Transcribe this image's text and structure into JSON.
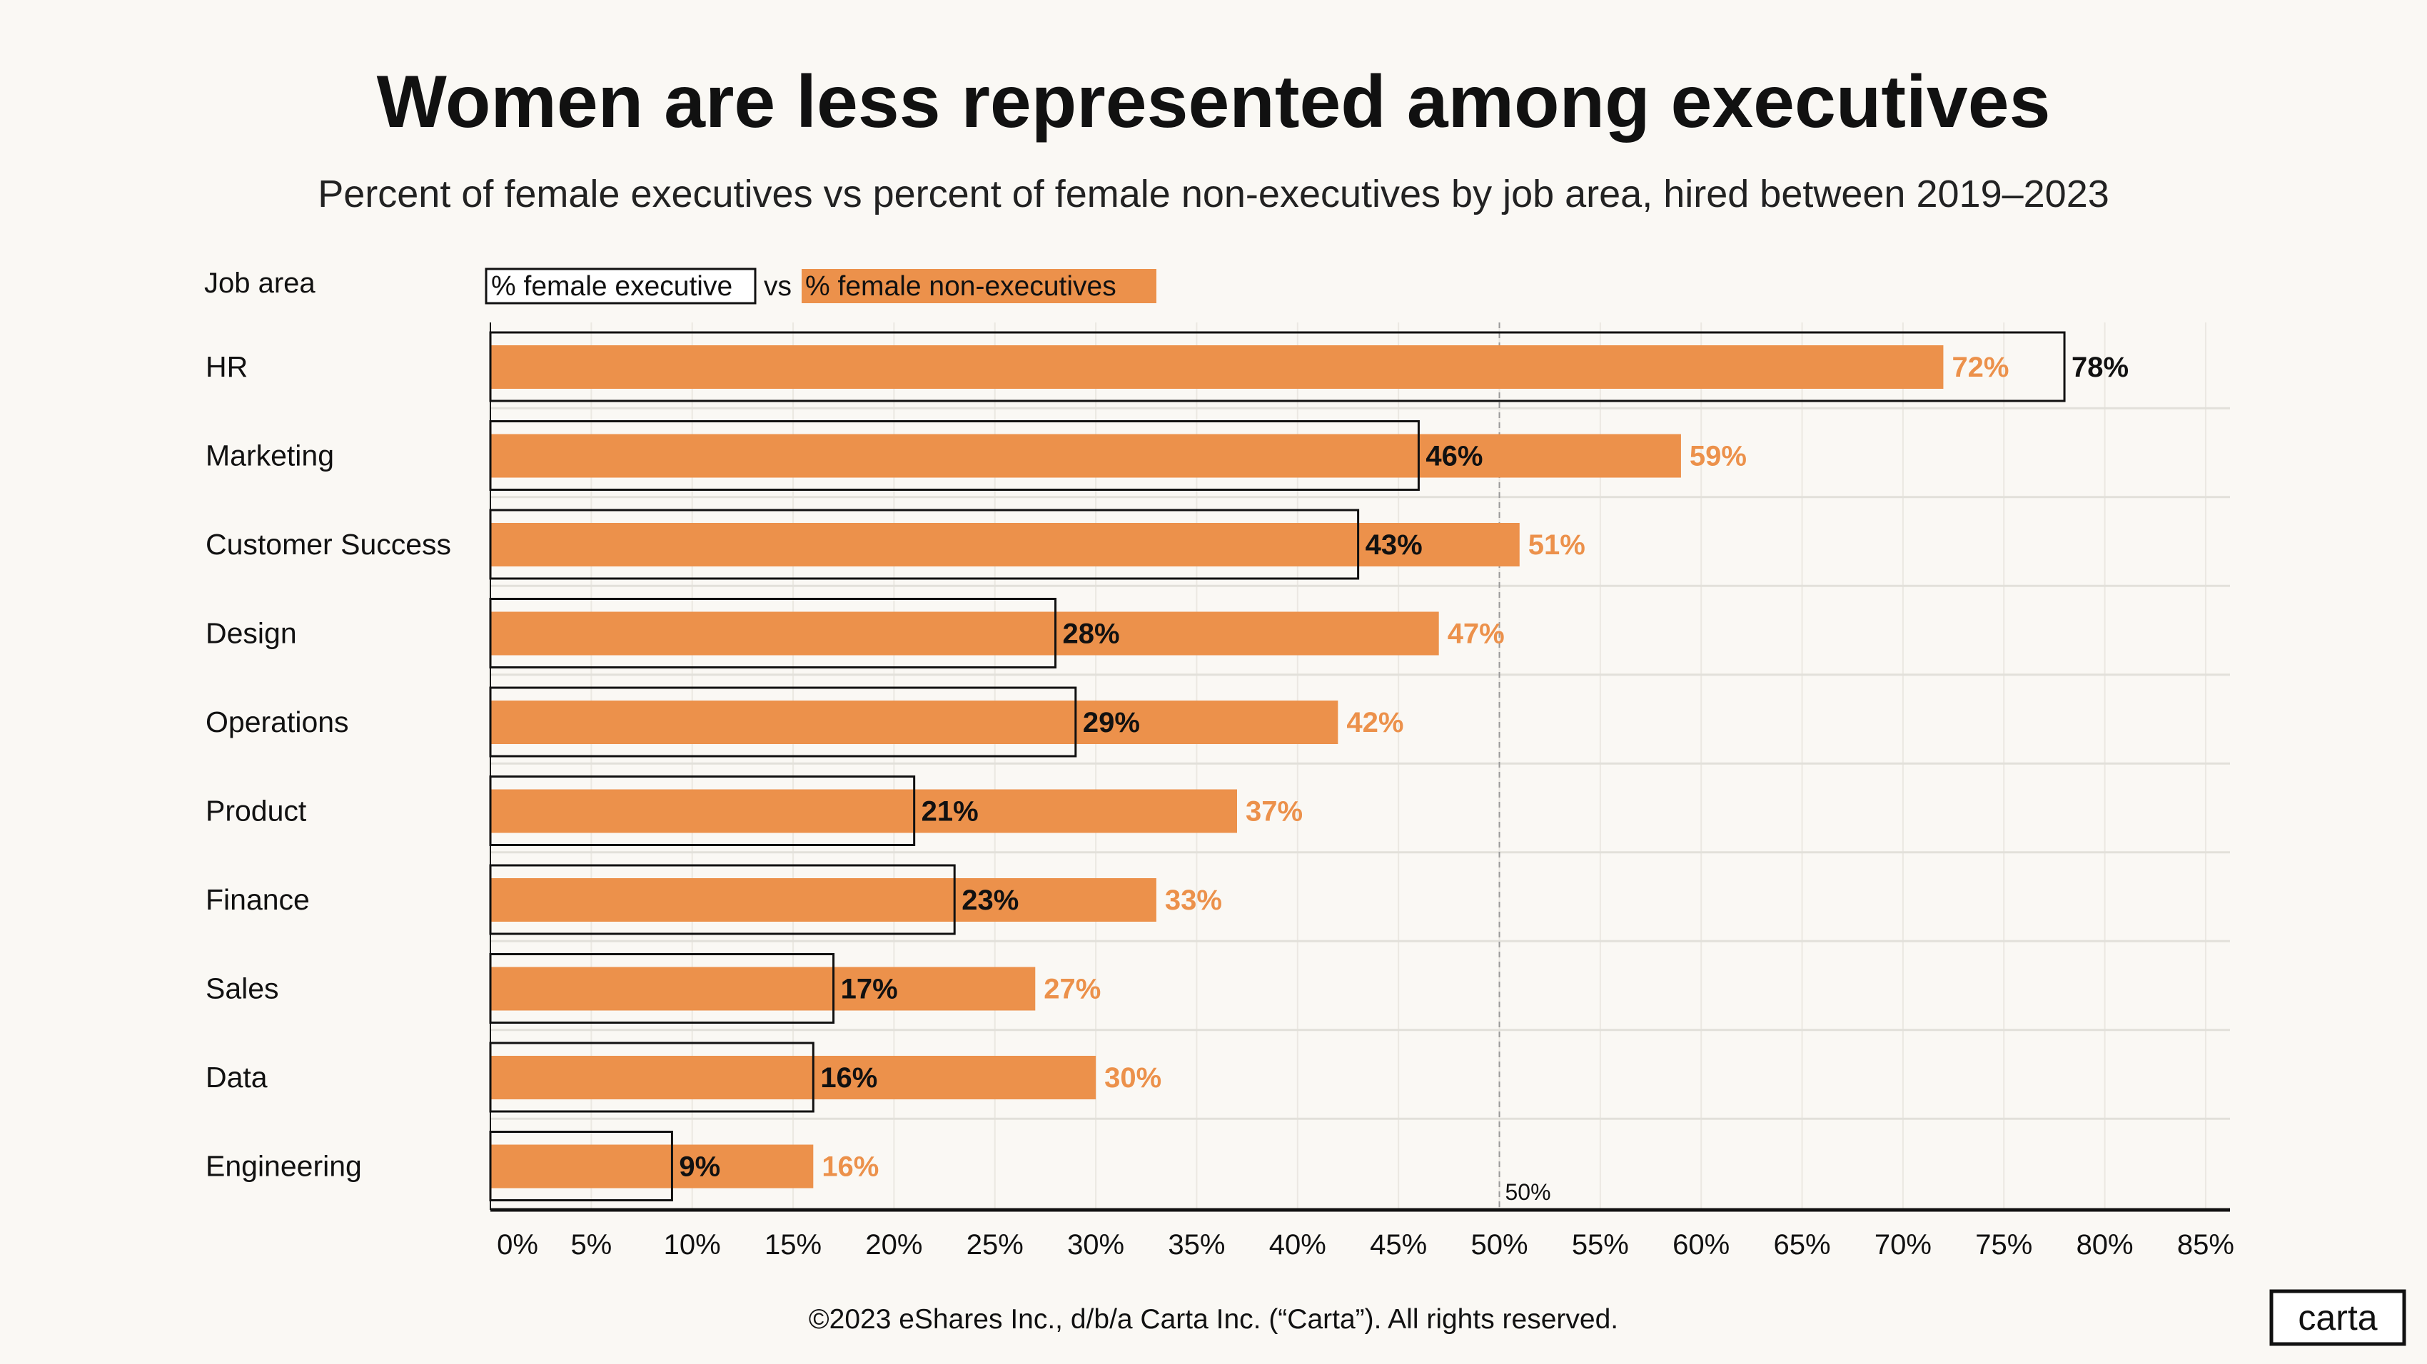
{
  "chart_data": {
    "type": "bar",
    "title": "Women are less represented among executives",
    "subtitle": "Percent of female executives vs percent of female non-executives by job area, hired between 2019–2023",
    "category_header": "Job area",
    "legend": {
      "executive": "% female executive",
      "vs": "vs",
      "non_executive": "% female non-executives",
      "placement": "top-left"
    },
    "categories": [
      "HR",
      "Marketing",
      "Customer Success",
      "Design",
      "Operations",
      "Product",
      "Finance",
      "Sales",
      "Data",
      "Engineering"
    ],
    "series": [
      {
        "name": "% female executive",
        "values": [
          78,
          46,
          43,
          28,
          29,
          21,
          23,
          17,
          16,
          9
        ],
        "labels": [
          "78%",
          "46%",
          "43%",
          "28%",
          "29%",
          "21%",
          "23%",
          "17%",
          "16%",
          "9%"
        ]
      },
      {
        "name": "% female non-executives",
        "values": [
          72,
          59,
          51,
          47,
          42,
          37,
          33,
          27,
          30,
          16
        ],
        "labels": [
          "72%",
          "59%",
          "51%",
          "47%",
          "42%",
          "37%",
          "33%",
          "27%",
          "30%",
          "16%"
        ]
      }
    ],
    "xlim": [
      0,
      85
    ],
    "xticks": [
      "0%",
      "5%",
      "10%",
      "15%",
      "20%",
      "25%",
      "30%",
      "35%",
      "40%",
      "45%",
      "50%",
      "55%",
      "60%",
      "65%",
      "70%",
      "75%",
      "80%",
      "85%"
    ],
    "reference_line": {
      "value": 50,
      "label": "50%"
    },
    "grid": true,
    "colors": {
      "non_executive": "#ec914b",
      "executive_outline": "#111111",
      "background": "#faf8f4"
    }
  },
  "footer": "©2023 eShares Inc., d/b/a Carta Inc. (“Carta”). All rights reserved.",
  "logo": "carta"
}
